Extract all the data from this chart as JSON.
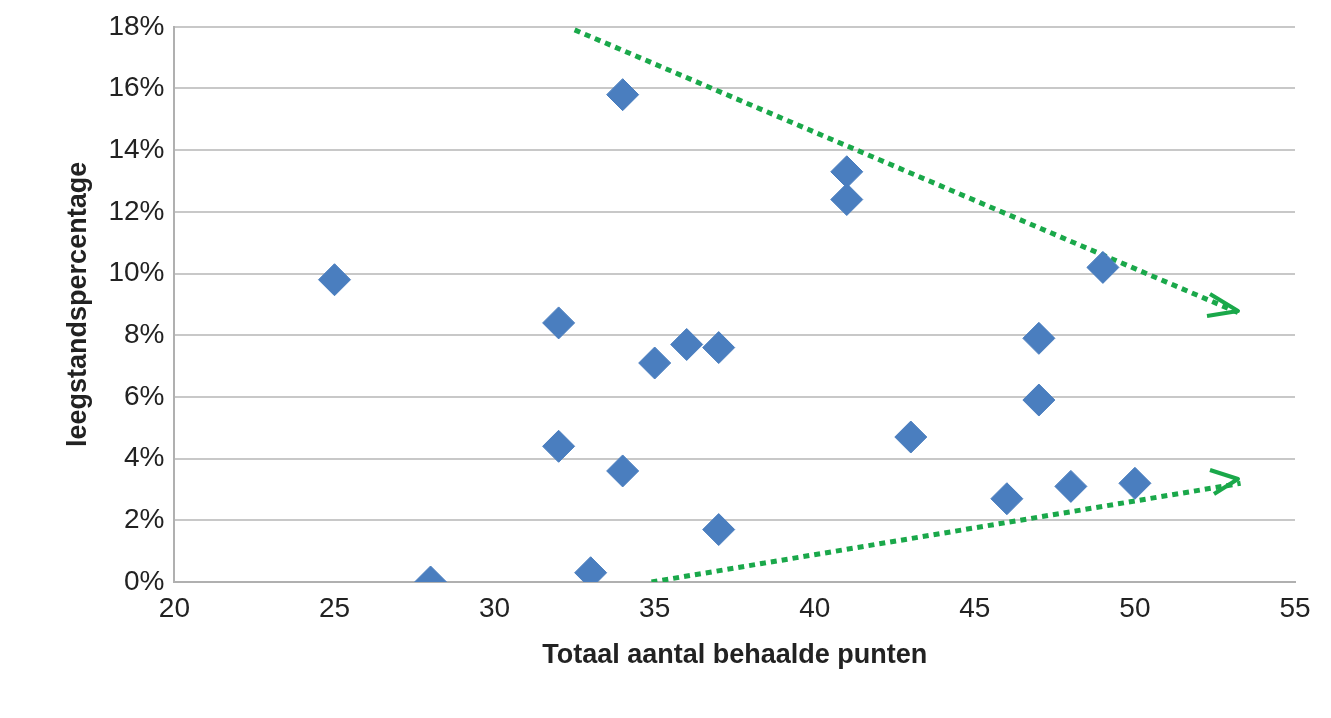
{
  "chart_data": {
    "type": "scatter",
    "xlabel": "Totaal aantal behaalde punten",
    "ylabel": "leegstandspercentage",
    "series": [
      {
        "color": "#4a7ebf",
        "x": [
          25,
          28,
          32,
          32,
          33,
          34,
          34,
          35,
          36,
          37,
          37,
          41,
          41,
          43,
          46,
          47,
          47,
          48,
          49,
          50
        ],
        "values": [
          9.8,
          0,
          8.4,
          4.4,
          0.3,
          15.8,
          3.6,
          7.1,
          7.7,
          7.6,
          1.7,
          13.3,
          12.4,
          4.7,
          2.7,
          7.9,
          5.9,
          3.1,
          10.2,
          3.2
        ]
      },
      {
        "type": "line",
        "color": "#1aa84a",
        "x": [
          32.5,
          53.3
        ],
        "values": [
          17.9,
          8.7
        ],
        "line_style": "dotted",
        "marker": "none"
      },
      {
        "type": "line",
        "color": "#1aa84a",
        "x": [
          34.9,
          53.3
        ],
        "values": [
          0,
          3.2
        ],
        "line_style": "dotted",
        "marker": "none"
      }
    ],
    "marker": "diamond",
    "xlim": [
      20,
      55
    ],
    "xticks": [
      20,
      25,
      30,
      35,
      40,
      45,
      50,
      55
    ],
    "ylim": [
      0,
      18
    ],
    "yticks": [
      {
        "value": 0,
        "label": "0%"
      },
      {
        "value": 2,
        "label": "2%"
      },
      {
        "value": 4,
        "label": "4%"
      },
      {
        "value": 6,
        "label": "6%"
      },
      {
        "value": 8,
        "label": "8%"
      },
      {
        "value": 10,
        "label": "10%"
      },
      {
        "value": 12,
        "label": "12%"
      },
      {
        "value": 14,
        "label": "14%"
      },
      {
        "value": 16,
        "label": "16%"
      },
      {
        "value": 18,
        "label": "18%"
      }
    ],
    "grid": "y",
    "legend": false
  }
}
